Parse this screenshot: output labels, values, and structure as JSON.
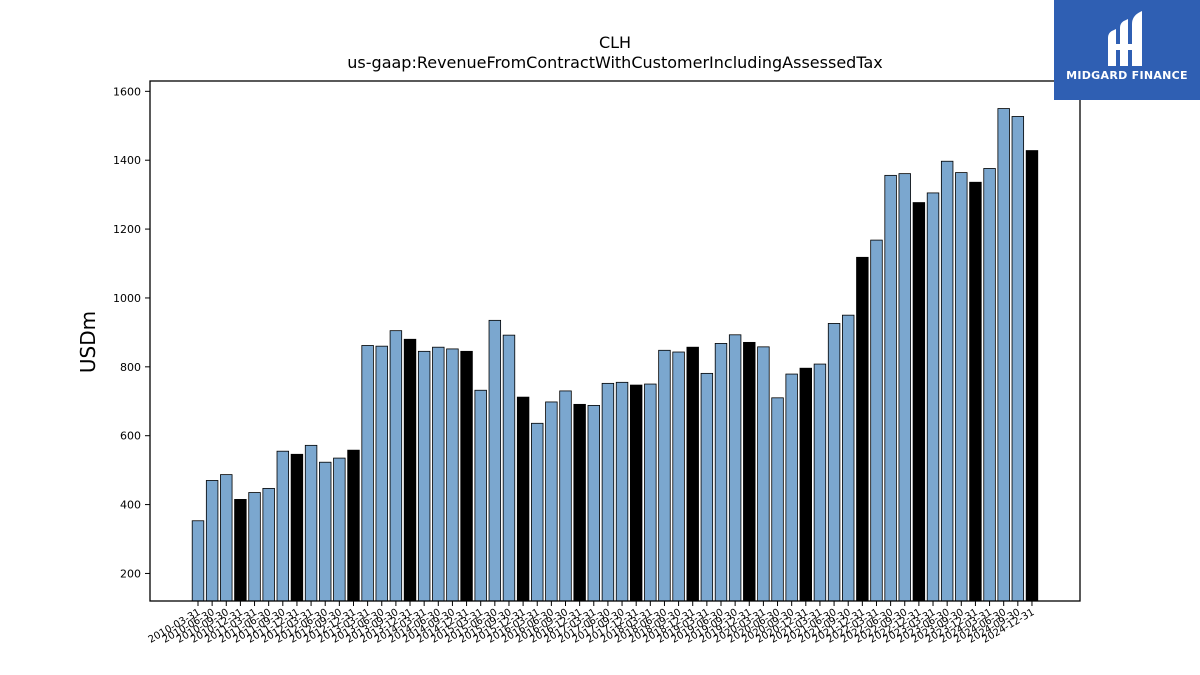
{
  "chart_data": {
    "type": "bar",
    "title": "CLH",
    "subtitle": "us-gaap:RevenueFromContractWithCustomerIncludingAssessedTax",
    "xlabel": "",
    "ylabel": "USDm",
    "ylim": [
      120,
      1630
    ],
    "yticks": [
      200,
      400,
      600,
      800,
      1000,
      1200,
      1400,
      1600
    ],
    "grid": false,
    "colors": {
      "quarter": "#7ba7cf",
      "year_end": "#000000",
      "edge": "#000000"
    },
    "categories": [
      "2010-03-31",
      "2010-06-30",
      "2010-09-30",
      "2010-12-31",
      "2011-03-31",
      "2011-06-30",
      "2011-09-30",
      "2011-12-31",
      "2012-03-31",
      "2012-06-30",
      "2012-09-30",
      "2012-12-31",
      "2013-03-31",
      "2013-06-30",
      "2013-09-30",
      "2013-12-31",
      "2014-03-31",
      "2014-06-30",
      "2014-09-30",
      "2014-12-31",
      "2015-03-31",
      "2015-06-30",
      "2015-09-30",
      "2015-12-31",
      "2016-03-31",
      "2016-06-30",
      "2016-09-30",
      "2016-12-31",
      "2017-03-31",
      "2017-06-30",
      "2017-09-30",
      "2017-12-31",
      "2018-03-31",
      "2018-06-30",
      "2018-09-30",
      "2018-12-31",
      "2019-03-31",
      "2019-06-30",
      "2019-09-30",
      "2019-12-31",
      "2020-03-31",
      "2020-06-30",
      "2020-09-30",
      "2020-12-31",
      "2021-03-31",
      "2021-06-30",
      "2021-09-30",
      "2021-12-31",
      "2022-03-31",
      "2022-06-30",
      "2022-09-30",
      "2022-12-31",
      "2023-03-31",
      "2023-06-30",
      "2023-09-30",
      "2023-12-31",
      "2024-03-31",
      "2024-06-30",
      "2024-09-30",
      "2024-12-31"
    ],
    "values": [
      353,
      470,
      487,
      415,
      435,
      447,
      555,
      546,
      572,
      523,
      535,
      558,
      862,
      860,
      905,
      880,
      845,
      857,
      852,
      845,
      732,
      935,
      892,
      712,
      636,
      698,
      730,
      691,
      688,
      752,
      755,
      747,
      750,
      848,
      843,
      857,
      781,
      868,
      893,
      871,
      858,
      710,
      779,
      796,
      808,
      926,
      950,
      1118,
      1168,
      1356,
      1361,
      1277,
      1305,
      1397,
      1364,
      1336,
      1376,
      1550,
      1527,
      1428
    ],
    "year_end": [
      false,
      false,
      false,
      true,
      false,
      false,
      false,
      true,
      false,
      false,
      false,
      true,
      false,
      false,
      false,
      true,
      false,
      false,
      false,
      true,
      false,
      false,
      false,
      true,
      false,
      false,
      false,
      true,
      false,
      false,
      false,
      true,
      false,
      false,
      false,
      true,
      false,
      false,
      false,
      true,
      false,
      false,
      false,
      true,
      false,
      false,
      false,
      true,
      false,
      false,
      false,
      true,
      false,
      false,
      false,
      true,
      false,
      false,
      false,
      true
    ]
  },
  "logo": {
    "text": "MIDGARD FINANCE",
    "icon": "midgard-logo-icon"
  }
}
